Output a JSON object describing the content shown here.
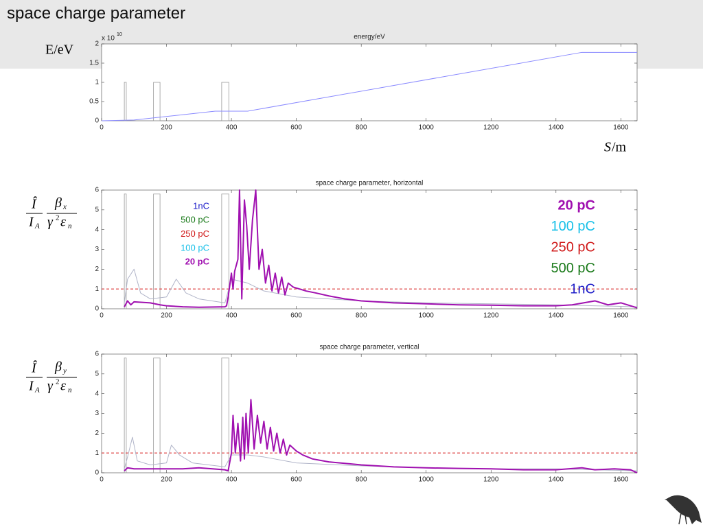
{
  "slide_title": "space charge parameter",
  "chart_data": [
    {
      "type": "line",
      "title": "energy/eV",
      "exponent_base": "x 10",
      "exponent": "10",
      "ylabel": "E/eV",
      "xlabel_var": "S",
      "xlabel_unit": "/m",
      "xlim": [
        0,
        1650
      ],
      "xticks": [
        0,
        200,
        400,
        600,
        800,
        1000,
        1200,
        1400,
        1600
      ],
      "ylim": [
        0,
        2
      ],
      "yticks": [
        0,
        0.5,
        1,
        1.5,
        2
      ],
      "boxes": [
        [
          70,
          76
        ],
        [
          160,
          180
        ],
        [
          370,
          392
        ]
      ],
      "box_height": 1,
      "series": [
        {
          "color": "#8a8aff",
          "x": [
            0,
            100,
            350,
            450,
            1480,
            1650
          ],
          "values": [
            0,
            0.02,
            0.25,
            0.25,
            1.78,
            1.78
          ]
        }
      ]
    },
    {
      "type": "line",
      "title": "space charge parameter, horizontal",
      "ylabel": {
        "current": "Î",
        "peak": "I",
        "peak_sub": "A",
        "beta": "β",
        "beta_sub": "x",
        "gamma": "γ",
        "gamma_sup": "2",
        "eps": "ε",
        "eps_sub": "n"
      },
      "xlim": [
        0,
        1650
      ],
      "xticks": [
        0,
        200,
        400,
        600,
        800,
        1000,
        1200,
        1400,
        1600
      ],
      "ylim": [
        0,
        6
      ],
      "yticks": [
        0,
        1,
        2,
        3,
        4,
        5,
        6
      ],
      "boxes": [
        [
          70,
          76
        ],
        [
          160,
          180
        ],
        [
          370,
          392
        ]
      ],
      "box_height": 5.8,
      "hline": {
        "value": 1,
        "color": "#d62020"
      },
      "legend_left": [
        {
          "text": "1nC",
          "color": "#1c1cc8"
        },
        {
          "text": "500 pC",
          "color": "#1a7a1a"
        },
        {
          "text": "250 pC",
          "color": "#d01818"
        },
        {
          "text": "100 pC",
          "color": "#18c0e8"
        },
        {
          "text": "20 pC",
          "color": "#a010b0",
          "bold": true
        }
      ],
      "legend_right": [
        {
          "text": "20 pC",
          "color": "#a010b0",
          "bold": true
        },
        {
          "text": "100 pC",
          "color": "#18c0e8"
        },
        {
          "text": "250 pC",
          "color": "#d01818"
        },
        {
          "text": "500 pC",
          "color": "#1a7a1a"
        },
        {
          "text": "1nC",
          "color": "#1c1cc8"
        }
      ],
      "series": [
        {
          "color": "#b0b4c8",
          "width": 1,
          "x": [
            70,
            80,
            100,
            120,
            150,
            200,
            230,
            260,
            300,
            380,
            400,
            450,
            500,
            600,
            800,
            1000,
            1200,
            1400,
            1650
          ],
          "values": [
            0.3,
            1.5,
            2.0,
            0.8,
            0.5,
            0.6,
            1.5,
            0.8,
            0.5,
            0.3,
            1.5,
            1.3,
            0.9,
            0.6,
            0.4,
            0.3,
            0.25,
            0.2,
            0.1
          ]
        },
        {
          "name": "20 pC",
          "color": "#a010b0",
          "width": 2,
          "x": [
            70,
            80,
            90,
            100,
            150,
            180,
            200,
            250,
            300,
            380,
            385,
            390,
            395,
            400,
            405,
            410,
            420,
            425,
            432,
            440,
            447,
            455,
            465,
            475,
            485,
            495,
            505,
            515,
            525,
            535,
            545,
            555,
            565,
            575,
            590,
            610,
            630,
            660,
            700,
            750,
            800,
            900,
            1000,
            1100,
            1200,
            1300,
            1400,
            1450,
            1520,
            1560,
            1600,
            1650
          ],
          "values": [
            0.1,
            0.4,
            0.2,
            0.35,
            0.3,
            0.2,
            0.15,
            0.1,
            0.08,
            0.1,
            0.15,
            0.6,
            1.2,
            1.8,
            1.0,
            1.9,
            2.5,
            6.0,
            0.5,
            5.5,
            4.2,
            2.0,
            4.5,
            6.0,
            2.0,
            3.0,
            1.3,
            2.2,
            0.9,
            1.8,
            0.8,
            1.6,
            0.7,
            1.3,
            1.1,
            1.0,
            0.9,
            0.8,
            0.65,
            0.5,
            0.4,
            0.3,
            0.25,
            0.2,
            0.18,
            0.15,
            0.15,
            0.2,
            0.4,
            0.2,
            0.3,
            0.05
          ]
        }
      ]
    },
    {
      "type": "line",
      "title": "space charge parameter, vertical",
      "ylabel": {
        "current": "Î",
        "peak": "I",
        "peak_sub": "A",
        "beta": "β",
        "beta_sub": "y",
        "gamma": "γ",
        "gamma_sup": "2",
        "eps": "ε",
        "eps_sub": "n"
      },
      "xlim": [
        0,
        1650
      ],
      "xticks": [
        0,
        200,
        400,
        600,
        800,
        1000,
        1200,
        1400,
        1600
      ],
      "ylim": [
        0,
        6
      ],
      "yticks": [
        0,
        1,
        2,
        3,
        4,
        5,
        6
      ],
      "boxes": [
        [
          70,
          76
        ],
        [
          160,
          180
        ],
        [
          370,
          392
        ]
      ],
      "box_height": 5.8,
      "hline": {
        "value": 1,
        "color": "#d62020"
      },
      "series": [
        {
          "color": "#b0b4c8",
          "width": 1,
          "x": [
            70,
            80,
            95,
            110,
            150,
            200,
            215,
            240,
            280,
            380,
            400,
            450,
            500,
            600,
            800,
            1000,
            1200,
            1400,
            1650
          ],
          "values": [
            0.2,
            0.8,
            1.8,
            0.6,
            0.4,
            0.5,
            1.4,
            0.9,
            0.5,
            0.3,
            0.9,
            0.9,
            0.8,
            0.5,
            0.35,
            0.25,
            0.2,
            0.2,
            0.1
          ]
        },
        {
          "name": "20 pC",
          "color": "#a010b0",
          "width": 2,
          "x": [
            70,
            80,
            100,
            150,
            200,
            250,
            300,
            380,
            390,
            400,
            405,
            412,
            420,
            428,
            435,
            440,
            445,
            452,
            460,
            470,
            480,
            490,
            500,
            510,
            520,
            530,
            540,
            550,
            560,
            570,
            580,
            600,
            620,
            650,
            700,
            800,
            900,
            1000,
            1100,
            1200,
            1300,
            1400,
            1480,
            1520,
            1580,
            1630,
            1650
          ],
          "values": [
            0.1,
            0.25,
            0.2,
            0.2,
            0.2,
            0.2,
            0.25,
            0.15,
            0.1,
            1.0,
            2.9,
            1.0,
            2.5,
            0.6,
            2.8,
            0.7,
            3.0,
            1.0,
            3.7,
            1.2,
            2.9,
            1.5,
            2.6,
            1.2,
            2.3,
            1.1,
            2.0,
            1.0,
            1.7,
            0.9,
            1.4,
            1.1,
            0.9,
            0.7,
            0.55,
            0.4,
            0.3,
            0.25,
            0.22,
            0.2,
            0.15,
            0.15,
            0.25,
            0.15,
            0.2,
            0.15,
            0
          ]
        }
      ]
    }
  ]
}
